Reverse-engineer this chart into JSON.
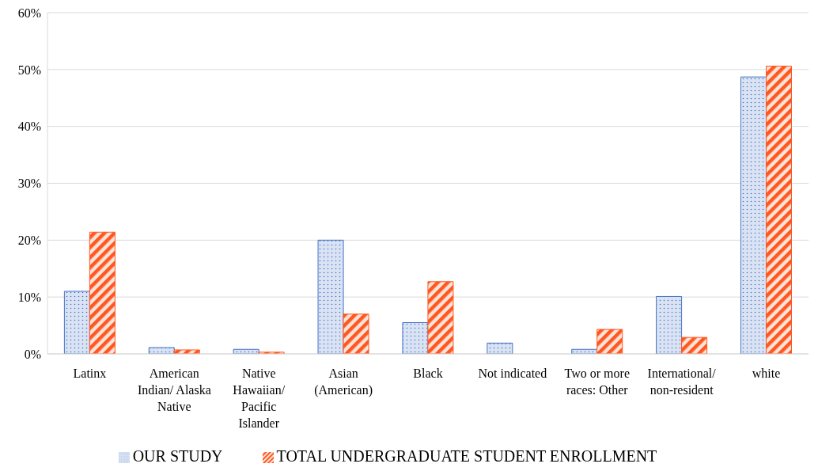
{
  "chart_data": {
    "type": "bar",
    "categories": [
      "Latinx",
      "American Indian/ Alaska Native",
      "Native Hawaiian/ Pacific Islander",
      "Asian (American)",
      "Black",
      "Not indicated",
      "Two or more races: Other",
      "International/ non-resident",
      "white"
    ],
    "series": [
      {
        "name": "OUR STUDY",
        "color": "#4472c4",
        "values": [
          11.0,
          1.1,
          0.8,
          20.0,
          5.5,
          1.9,
          0.8,
          10.1,
          48.7
        ]
      },
      {
        "name": "TOTAL UNDERGRADUATE STUDENT ENROLLMENT",
        "color": "#ff5722",
        "values": [
          21.4,
          0.7,
          0.3,
          7.0,
          12.7,
          null,
          4.3,
          2.9,
          50.6
        ]
      }
    ],
    "ylim": [
      0,
      60
    ],
    "yticks": [
      {
        "value": 0,
        "label": "0%"
      },
      {
        "value": 10,
        "label": "10%"
      },
      {
        "value": 20,
        "label": "20%"
      },
      {
        "value": 30,
        "label": "30%"
      },
      {
        "value": 40,
        "label": "40%"
      },
      {
        "value": 50,
        "label": "50%"
      },
      {
        "value": 60,
        "label": "60%"
      }
    ],
    "grid": "y",
    "legend": "bottom"
  }
}
